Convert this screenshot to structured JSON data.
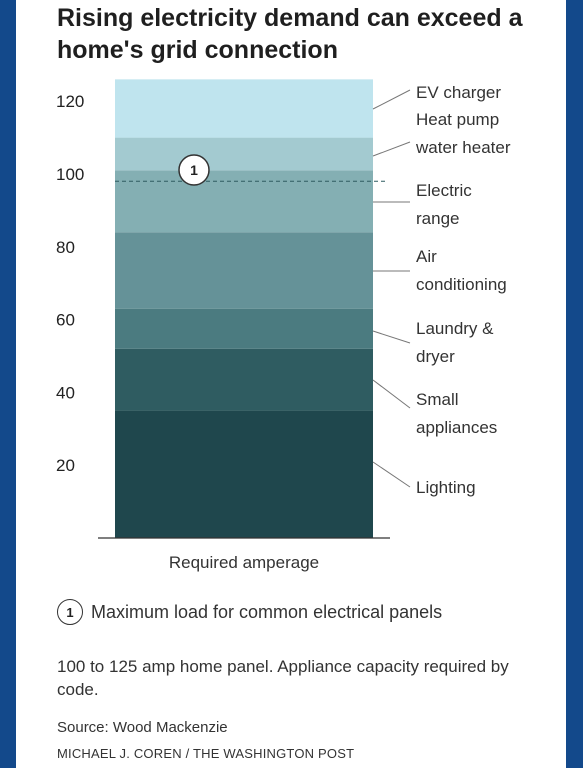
{
  "title": "Rising electricity demand can exceed a home's grid connection",
  "chart_data": {
    "type": "bar",
    "stacked": true,
    "xlabel": "Required amperage",
    "ylim": [
      0,
      126
    ],
    "yticks": [
      20,
      40,
      60,
      80,
      100,
      120
    ],
    "series": [
      {
        "name": "Lighting",
        "value": 35,
        "color": "#1f474d"
      },
      {
        "name": "Small appliances",
        "value": 17,
        "color": "#2f5c61"
      },
      {
        "name": "Laundry & dryer",
        "value": 11,
        "color": "#4b7b80"
      },
      {
        "name": "Air conditioning",
        "value": 21,
        "color": "#659298"
      },
      {
        "name": "Electric range",
        "value": 17,
        "color": "#84afb3"
      },
      {
        "name": "Heat pump water heater",
        "value": 9,
        "color": "#a3cad0"
      },
      {
        "name": "EV charger",
        "value": 16,
        "color": "#bfe4ee"
      }
    ],
    "labels": [
      {
        "series": "Lighting",
        "lines": [
          "Lighting"
        ]
      },
      {
        "series": "Small appliances",
        "lines": [
          "Small",
          "appliances"
        ]
      },
      {
        "series": "Laundry & dryer",
        "lines": [
          "Laundry &",
          "dryer"
        ]
      },
      {
        "series": "Air conditioning",
        "lines": [
          "Air",
          "conditioning"
        ]
      },
      {
        "series": "Electric range",
        "lines": [
          "Electric",
          "range"
        ]
      },
      {
        "series": "Heat pump water heater",
        "lines": [
          "Heat pump",
          "water heater"
        ]
      },
      {
        "series": "EV charger",
        "lines": [
          "EV charger"
        ]
      }
    ],
    "reference_line": {
      "value": 98,
      "marker": "1"
    }
  },
  "note": {
    "marker": "1",
    "text": "Maximum load for common electrical panels",
    "description": "100 to 125 amp home panel. Appliance capacity required by code."
  },
  "source": "Source: Wood Mackenzie",
  "credit": "MICHAEL J. COREN / THE WASHINGTON POST"
}
